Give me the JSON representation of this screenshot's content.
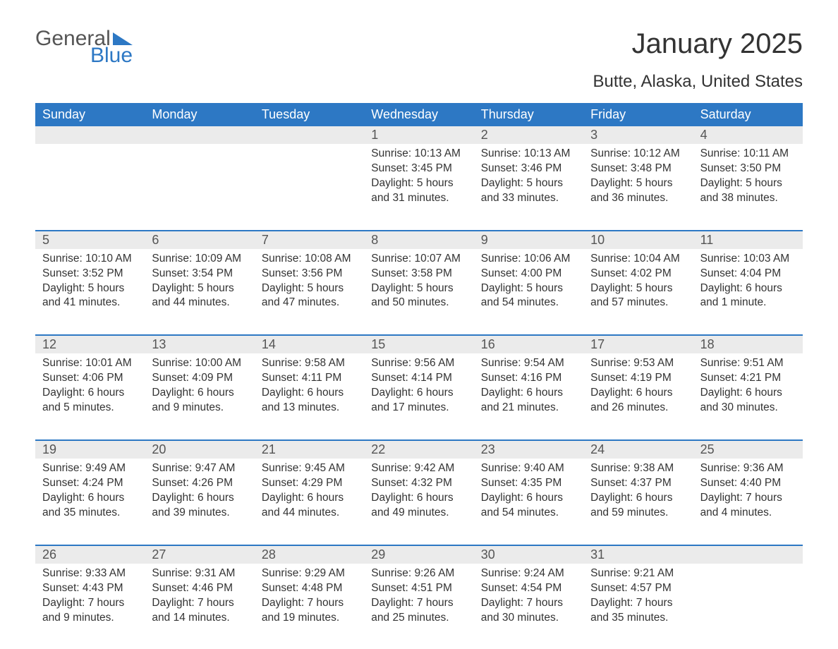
{
  "logo": {
    "text_general": "General",
    "text_blue": "Blue",
    "tri_color": "#2d78c4"
  },
  "title": "January 2025",
  "subtitle": "Butte, Alaska, United States",
  "colors": {
    "header_bg": "#2d78c4",
    "header_text": "#ffffff",
    "daynum_bg": "#ebebeb",
    "daynum_text": "#555555",
    "body_text": "#333333",
    "border": "#2d78c4",
    "page_bg": "#ffffff"
  },
  "weekdays": [
    "Sunday",
    "Monday",
    "Tuesday",
    "Wednesday",
    "Thursday",
    "Friday",
    "Saturday"
  ],
  "weeks": [
    [
      {
        "num": "",
        "lines": []
      },
      {
        "num": "",
        "lines": []
      },
      {
        "num": "",
        "lines": []
      },
      {
        "num": "1",
        "lines": [
          "Sunrise: 10:13 AM",
          "Sunset: 3:45 PM",
          "Daylight: 5 hours",
          "and 31 minutes."
        ]
      },
      {
        "num": "2",
        "lines": [
          "Sunrise: 10:13 AM",
          "Sunset: 3:46 PM",
          "Daylight: 5 hours",
          "and 33 minutes."
        ]
      },
      {
        "num": "3",
        "lines": [
          "Sunrise: 10:12 AM",
          "Sunset: 3:48 PM",
          "Daylight: 5 hours",
          "and 36 minutes."
        ]
      },
      {
        "num": "4",
        "lines": [
          "Sunrise: 10:11 AM",
          "Sunset: 3:50 PM",
          "Daylight: 5 hours",
          "and 38 minutes."
        ]
      }
    ],
    [
      {
        "num": "5",
        "lines": [
          "Sunrise: 10:10 AM",
          "Sunset: 3:52 PM",
          "Daylight: 5 hours",
          "and 41 minutes."
        ]
      },
      {
        "num": "6",
        "lines": [
          "Sunrise: 10:09 AM",
          "Sunset: 3:54 PM",
          "Daylight: 5 hours",
          "and 44 minutes."
        ]
      },
      {
        "num": "7",
        "lines": [
          "Sunrise: 10:08 AM",
          "Sunset: 3:56 PM",
          "Daylight: 5 hours",
          "and 47 minutes."
        ]
      },
      {
        "num": "8",
        "lines": [
          "Sunrise: 10:07 AM",
          "Sunset: 3:58 PM",
          "Daylight: 5 hours",
          "and 50 minutes."
        ]
      },
      {
        "num": "9",
        "lines": [
          "Sunrise: 10:06 AM",
          "Sunset: 4:00 PM",
          "Daylight: 5 hours",
          "and 54 minutes."
        ]
      },
      {
        "num": "10",
        "lines": [
          "Sunrise: 10:04 AM",
          "Sunset: 4:02 PM",
          "Daylight: 5 hours",
          "and 57 minutes."
        ]
      },
      {
        "num": "11",
        "lines": [
          "Sunrise: 10:03 AM",
          "Sunset: 4:04 PM",
          "Daylight: 6 hours",
          "and 1 minute."
        ]
      }
    ],
    [
      {
        "num": "12",
        "lines": [
          "Sunrise: 10:01 AM",
          "Sunset: 4:06 PM",
          "Daylight: 6 hours",
          "and 5 minutes."
        ]
      },
      {
        "num": "13",
        "lines": [
          "Sunrise: 10:00 AM",
          "Sunset: 4:09 PM",
          "Daylight: 6 hours",
          "and 9 minutes."
        ]
      },
      {
        "num": "14",
        "lines": [
          "Sunrise: 9:58 AM",
          "Sunset: 4:11 PM",
          "Daylight: 6 hours",
          "and 13 minutes."
        ]
      },
      {
        "num": "15",
        "lines": [
          "Sunrise: 9:56 AM",
          "Sunset: 4:14 PM",
          "Daylight: 6 hours",
          "and 17 minutes."
        ]
      },
      {
        "num": "16",
        "lines": [
          "Sunrise: 9:54 AM",
          "Sunset: 4:16 PM",
          "Daylight: 6 hours",
          "and 21 minutes."
        ]
      },
      {
        "num": "17",
        "lines": [
          "Sunrise: 9:53 AM",
          "Sunset: 4:19 PM",
          "Daylight: 6 hours",
          "and 26 minutes."
        ]
      },
      {
        "num": "18",
        "lines": [
          "Sunrise: 9:51 AM",
          "Sunset: 4:21 PM",
          "Daylight: 6 hours",
          "and 30 minutes."
        ]
      }
    ],
    [
      {
        "num": "19",
        "lines": [
          "Sunrise: 9:49 AM",
          "Sunset: 4:24 PM",
          "Daylight: 6 hours",
          "and 35 minutes."
        ]
      },
      {
        "num": "20",
        "lines": [
          "Sunrise: 9:47 AM",
          "Sunset: 4:26 PM",
          "Daylight: 6 hours",
          "and 39 minutes."
        ]
      },
      {
        "num": "21",
        "lines": [
          "Sunrise: 9:45 AM",
          "Sunset: 4:29 PM",
          "Daylight: 6 hours",
          "and 44 minutes."
        ]
      },
      {
        "num": "22",
        "lines": [
          "Sunrise: 9:42 AM",
          "Sunset: 4:32 PM",
          "Daylight: 6 hours",
          "and 49 minutes."
        ]
      },
      {
        "num": "23",
        "lines": [
          "Sunrise: 9:40 AM",
          "Sunset: 4:35 PM",
          "Daylight: 6 hours",
          "and 54 minutes."
        ]
      },
      {
        "num": "24",
        "lines": [
          "Sunrise: 9:38 AM",
          "Sunset: 4:37 PM",
          "Daylight: 6 hours",
          "and 59 minutes."
        ]
      },
      {
        "num": "25",
        "lines": [
          "Sunrise: 9:36 AM",
          "Sunset: 4:40 PM",
          "Daylight: 7 hours",
          "and 4 minutes."
        ]
      }
    ],
    [
      {
        "num": "26",
        "lines": [
          "Sunrise: 9:33 AM",
          "Sunset: 4:43 PM",
          "Daylight: 7 hours",
          "and 9 minutes."
        ]
      },
      {
        "num": "27",
        "lines": [
          "Sunrise: 9:31 AM",
          "Sunset: 4:46 PM",
          "Daylight: 7 hours",
          "and 14 minutes."
        ]
      },
      {
        "num": "28",
        "lines": [
          "Sunrise: 9:29 AM",
          "Sunset: 4:48 PM",
          "Daylight: 7 hours",
          "and 19 minutes."
        ]
      },
      {
        "num": "29",
        "lines": [
          "Sunrise: 9:26 AM",
          "Sunset: 4:51 PM",
          "Daylight: 7 hours",
          "and 25 minutes."
        ]
      },
      {
        "num": "30",
        "lines": [
          "Sunrise: 9:24 AM",
          "Sunset: 4:54 PM",
          "Daylight: 7 hours",
          "and 30 minutes."
        ]
      },
      {
        "num": "31",
        "lines": [
          "Sunrise: 9:21 AM",
          "Sunset: 4:57 PM",
          "Daylight: 7 hours",
          "and 35 minutes."
        ]
      },
      {
        "num": "",
        "lines": []
      }
    ]
  ]
}
